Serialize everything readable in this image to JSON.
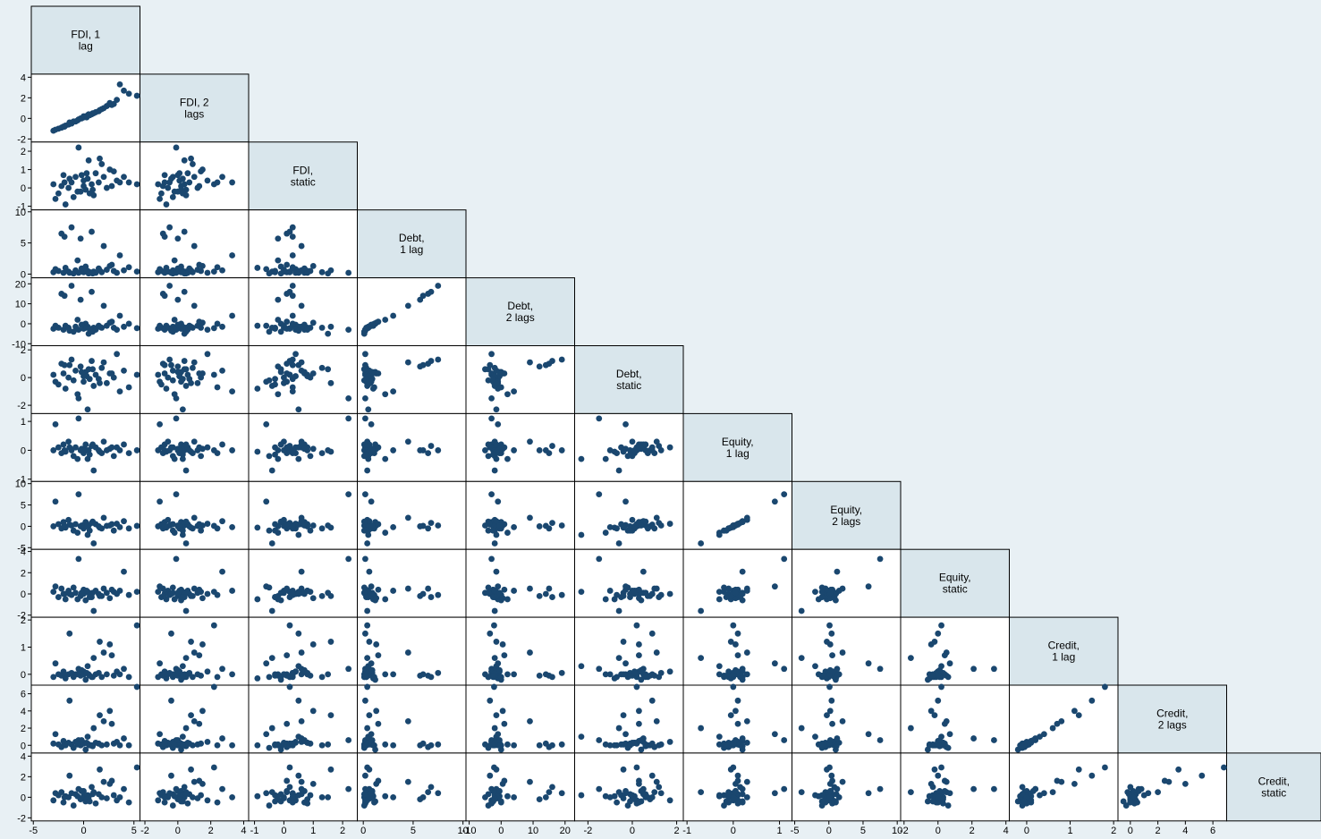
{
  "chart_data": {
    "type": "scatter_matrix",
    "color": "#1a476f",
    "variables": [
      {
        "label": [
          "FDI, 1",
          "lag"
        ],
        "lim": [
          -5.2,
          5.6
        ],
        "ticks": [
          -5,
          0,
          5
        ],
        "values": [
          -3,
          -2.5,
          -2.2,
          -2,
          -1.8,
          -1.5,
          -1.2,
          -1,
          -0.8,
          -0.5,
          -0.3,
          0,
          0,
          0.2,
          0.4,
          0.5,
          0.8,
          1,
          1.2,
          1.5,
          1.8,
          2,
          2.3,
          2.6,
          3,
          3.3,
          3.6,
          4,
          4.5,
          5.3,
          -2.8,
          -1.4,
          -0.6,
          0.3,
          0.9,
          1.6,
          2.8,
          -1.9,
          0.6,
          -0.2
        ]
      },
      {
        "label": [
          "FDI, 2",
          "lags"
        ],
        "lim": [
          -2.3,
          4.3
        ],
        "ticks": [
          -2,
          0,
          2,
          4
        ],
        "values": [
          -1.2,
          -1,
          -0.9,
          -0.8,
          -0.7,
          -0.6,
          -0.5,
          -0.3,
          -0.3,
          -0.1,
          0,
          0.1,
          0.2,
          0.2,
          0.3,
          0.4,
          0.4,
          0.5,
          0.6,
          0.7,
          0.9,
          1,
          1.2,
          1.5,
          1.4,
          1.8,
          3.3,
          2.7,
          2.4,
          2.2,
          -1.1,
          -0.4,
          -0.2,
          0.1,
          0.5,
          0.8,
          1.3,
          -0.8,
          0.3,
          0
        ]
      },
      {
        "label": [
          "FDI,",
          "static"
        ],
        "lim": [
          -1.2,
          2.5
        ],
        "ticks": [
          -1,
          0,
          1,
          2
        ],
        "values": [
          0.2,
          -0.3,
          0.1,
          0.7,
          -0.9,
          0,
          0.3,
          -0.5,
          0.6,
          2.2,
          -0.2,
          0.4,
          0.1,
          -0.1,
          0.5,
          1.5,
          0.2,
          -0.4,
          0.8,
          0.3,
          1.3,
          0.6,
          0,
          1,
          0.9,
          0.4,
          0.3,
          0.6,
          0.3,
          0.2,
          -0.6,
          0.5,
          -0.2,
          0.8,
          -0.1,
          1.6,
          0.1,
          0.3,
          -0.3,
          0.7
        ]
      },
      {
        "label": [
          "Debt,",
          "1 lag"
        ],
        "lim": [
          -0.6,
          10.3
        ],
        "ticks": [
          0,
          5,
          10
        ],
        "values": [
          0.3,
          0.5,
          6.5,
          0.2,
          1,
          0.4,
          7.5,
          0.1,
          0.6,
          0.2,
          5.7,
          0.8,
          0.3,
          1.2,
          0.5,
          0.1,
          6.8,
          0.4,
          0.2,
          0.9,
          0.3,
          4.5,
          0.7,
          1.3,
          0.5,
          0.2,
          3,
          0.6,
          1.1,
          0.4,
          0.8,
          0.2,
          2.2,
          0.5,
          0.1,
          0.6,
          1.5,
          6,
          0.3,
          0.9
        ]
      },
      {
        "label": [
          "Debt,",
          "2 lags"
        ],
        "lim": [
          -11,
          23
        ],
        "ticks": [
          -10,
          0,
          10,
          20
        ],
        "values": [
          -2.5,
          -2,
          15,
          -3,
          -1,
          -2,
          19,
          -4,
          -1.5,
          -3,
          12,
          -0.5,
          -2.5,
          0,
          -1.5,
          -5,
          16,
          -2,
          -3,
          -1,
          -2,
          9,
          -1,
          0.5,
          -2,
          -3,
          4,
          -1.5,
          0,
          -2.2,
          -1,
          -3.5,
          2,
          -2,
          -4,
          -1.5,
          1,
          14,
          -2.5,
          -0.5
        ]
      },
      {
        "label": [
          "Debt,",
          "static"
        ],
        "lim": [
          -2.6,
          2.3
        ],
        "ticks": [
          -2,
          0,
          2
        ],
        "values": [
          0.2,
          -0.5,
          1,
          0.3,
          -0.8,
          0,
          1.3,
          -0.2,
          0.5,
          -1.5,
          0.8,
          0.1,
          -0.3,
          0.4,
          -2.3,
          0.6,
          1.2,
          -0.6,
          0.2,
          -0.1,
          0.7,
          1.1,
          -0.4,
          0.3,
          0,
          1.7,
          -1,
          0.5,
          -0.7,
          0.2,
          -0.3,
          0.9,
          -1.2,
          0.1,
          0.6,
          -0.4,
          0.3,
          0.9,
          -0.1,
          0.4
        ]
      },
      {
        "label": [
          "Equity,",
          "1 lag"
        ],
        "lim": [
          -1.08,
          1.27
        ],
        "ticks": [
          -1,
          0,
          1
        ],
        "values": [
          0,
          0.1,
          -0.1,
          0.2,
          -0.05,
          0.3,
          0,
          -0.2,
          0.1,
          1.1,
          0,
          -0.1,
          0.05,
          0.2,
          -0.3,
          0,
          0.15,
          -0.7,
          0.1,
          0,
          -0.1,
          0.3,
          0,
          0.05,
          -0.2,
          0.1,
          0,
          0.2,
          -0.1,
          0,
          0.9,
          0.1,
          -0.3,
          0,
          0.2,
          -0.05,
          0.1,
          0,
          -0.15,
          0.05
        ]
      },
      {
        "label": [
          "Equity,",
          "2 lags"
        ],
        "lim": [
          -5.4,
          10.5
        ],
        "ticks": [
          -5,
          0,
          5,
          10
        ],
        "values": [
          0,
          0.5,
          -0.5,
          1,
          -0.3,
          1.5,
          0.2,
          -1,
          0.5,
          7.5,
          0,
          -0.5,
          0.3,
          1,
          -2,
          0.2,
          0.8,
          -4,
          0.5,
          0,
          -0.5,
          2,
          0.1,
          0.2,
          -1,
          0.6,
          -0.2,
          1.2,
          -0.5,
          0.1,
          5.8,
          0.4,
          -1.5,
          0,
          1.1,
          -0.3,
          0.5,
          0.1,
          -1,
          0.2
        ]
      },
      {
        "label": [
          "Equity,",
          "static"
        ],
        "lim": [
          -2.2,
          4.2
        ],
        "ticks": [
          -2,
          0,
          2,
          4
        ],
        "values": [
          0.2,
          -0.3,
          0.5,
          0,
          -0.5,
          0.3,
          -0.1,
          0.6,
          0.1,
          3.3,
          -0.2,
          0,
          0.4,
          -0.6,
          0.2,
          0.1,
          -0.3,
          -1.6,
          0.3,
          0,
          -0.2,
          0.5,
          0.1,
          -0.4,
          0.2,
          0,
          0.3,
          2.1,
          -0.1,
          0.2,
          0.7,
          0,
          -0.5,
          0.3,
          0.1,
          -0.2,
          0.4,
          0,
          -0.3,
          0.1
        ]
      },
      {
        "label": [
          "Credit,",
          "1 lag"
        ],
        "lim": [
          -0.4,
          2.1
        ],
        "ticks": [
          0,
          1,
          2
        ],
        "values": [
          -0.1,
          0,
          -0.05,
          0.1,
          -0.15,
          0,
          0.05,
          -0.1,
          0,
          0.2,
          -0.05,
          0.1,
          0,
          -0.2,
          0.3,
          0,
          -0.1,
          0.6,
          0,
          0.05,
          -0.1,
          0.8,
          0,
          1.1,
          -0.05,
          0.1,
          0,
          0.2,
          -0.1,
          1.8,
          0.4,
          1.5,
          0,
          0.05,
          -0.1,
          1.2,
          0.7,
          0,
          -0.05,
          0.15
        ]
      },
      {
        "label": [
          "Credit,",
          "2 lags"
        ],
        "lim": [
          -0.9,
          7
        ],
        "ticks": [
          0,
          2,
          4,
          6
        ],
        "values": [
          0.2,
          0.1,
          -0.2,
          0.5,
          0,
          0.3,
          0.1,
          -0.3,
          0.4,
          0.6,
          0,
          0.3,
          0.2,
          -0.5,
          1,
          0.1,
          0,
          2,
          0.3,
          0.2,
          0,
          2.8,
          0.1,
          4,
          0.2,
          0.4,
          0,
          0.8,
          0,
          6.8,
          1.3,
          5.2,
          0.1,
          0.3,
          -0.1,
          3.5,
          2.5,
          0.2,
          0,
          0.6
        ]
      },
      {
        "label": [
          "Credit,",
          "static"
        ],
        "lim": [
          -2.3,
          4.3
        ],
        "ticks": [
          -2,
          0,
          2,
          4
        ],
        "values": [
          -0.3,
          0.2,
          0.5,
          -0.5,
          0.1,
          0,
          0.4,
          -0.8,
          0.3,
          0.8,
          -0.2,
          0.1,
          0.6,
          -0.4,
          0.2,
          0,
          1,
          0.5,
          -0.6,
          0.3,
          0,
          1.5,
          -0.1,
          1.3,
          0.2,
          -0.3,
          0,
          0.8,
          -0.5,
          2.9,
          0.4,
          2.1,
          0.1,
          -0.2,
          0.3,
          2.7,
          1.6,
          0,
          -0.4,
          0.6
        ]
      }
    ]
  }
}
